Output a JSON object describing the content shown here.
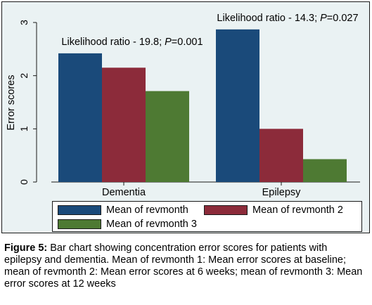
{
  "chart_data": {
    "type": "bar",
    "categories": [
      "Dementia",
      "Epilepsy"
    ],
    "series": [
      {
        "name": "Mean of revmonth",
        "color": "#1a4a7a",
        "values": [
          2.42,
          2.87
        ]
      },
      {
        "name": "Mean of revmonth 2",
        "color": "#8c2b3a",
        "values": [
          2.15,
          1.0
        ]
      },
      {
        "name": "Mean of revmonth 3",
        "color": "#4e7a33",
        "values": [
          1.71,
          0.43
        ]
      }
    ],
    "ylabel": "Error scores",
    "xlabel": "",
    "ylim": [
      0,
      3
    ],
    "yticks": [
      "0",
      "1",
      "2",
      "3"
    ],
    "grid": false,
    "legend_position": "bottom",
    "annotations": [
      {
        "prefix": "Likelihood ratio - 19.8; ",
        "p_label": "P",
        "suffix": "=0.001",
        "category": "Dementia"
      },
      {
        "prefix": "Likelihood ratio - 14.3; ",
        "p_label": "P",
        "suffix": "=0.027",
        "category": "Epilepsy"
      }
    ]
  },
  "caption": {
    "label": "Figure 5:",
    "text": " Bar chart showing concentration error scores for patients with epilepsy and dementia. Mean of revmonth 1: Mean error scores at baseline; mean of revmonth 2: Mean error scores at 6 weeks; mean of revmonth 3: Mean error scores at 12 weeks"
  }
}
